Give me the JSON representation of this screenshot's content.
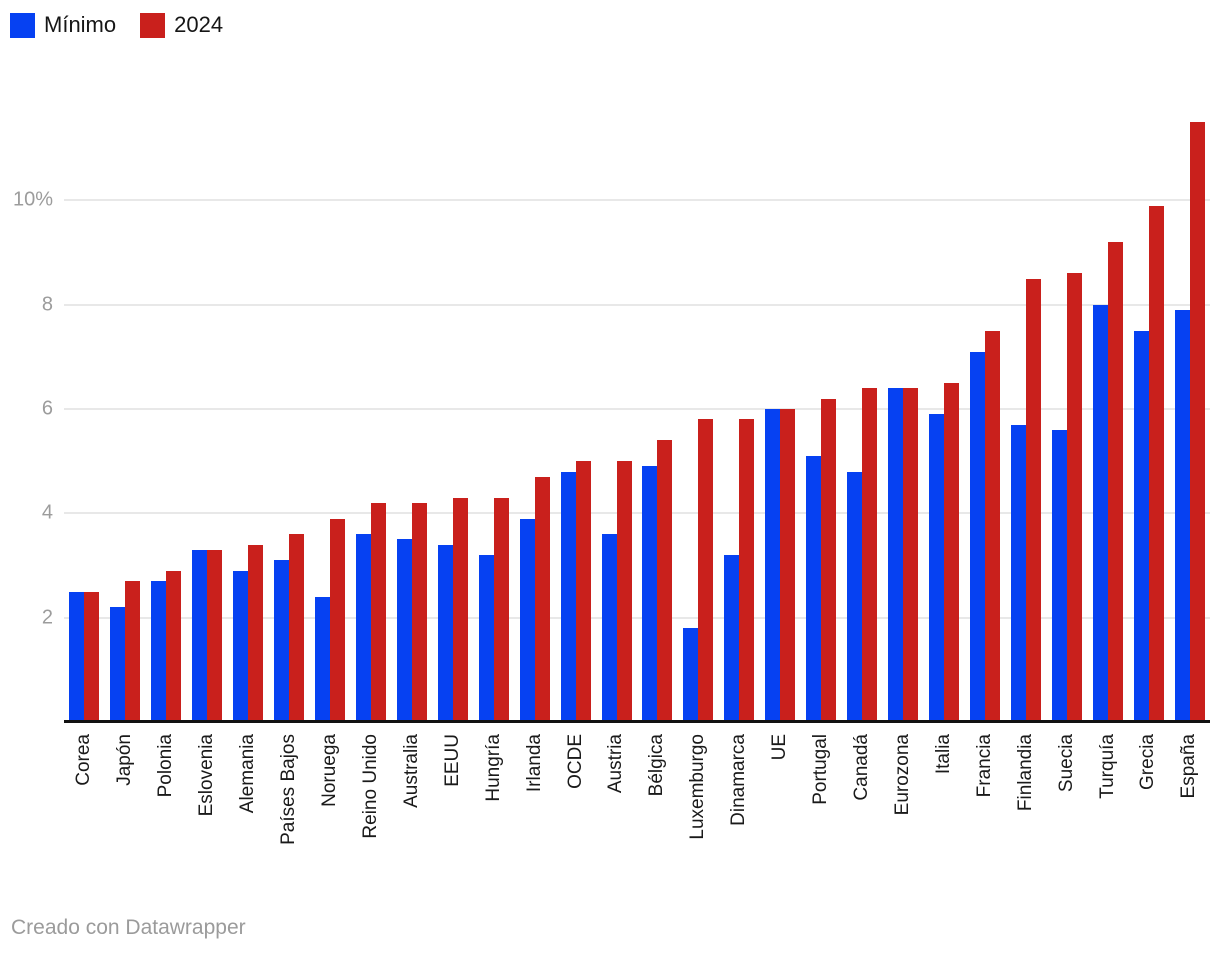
{
  "legend": {
    "items": [
      {
        "label": "Mínimo",
        "color": "#0641f2"
      },
      {
        "label": "2024",
        "color": "#c9201c"
      }
    ]
  },
  "footer": {
    "credit": "Creado con Datawrapper"
  },
  "colors": {
    "bar_minimo": "#0641f2",
    "bar_2024": "#c9201c",
    "gridline": "#e8e8e8",
    "axis_line": "#111111",
    "ytick_text": "#9c9c9c",
    "xlabel_text": "#1a1a1a",
    "footer_text": "#9b9b9b"
  },
  "chart_data": {
    "type": "bar",
    "title": "",
    "xlabel": "",
    "ylabel": "",
    "grid": true,
    "legend_position": "top-left",
    "ylim": [
      0,
      12
    ],
    "yticks": [
      {
        "value": 2,
        "label": "2"
      },
      {
        "value": 4,
        "label": "4"
      },
      {
        "value": 6,
        "label": "6"
      },
      {
        "value": 8,
        "label": "8"
      },
      {
        "value": 10,
        "label": "10%"
      }
    ],
    "categories": [
      "Corea",
      "Japón",
      "Polonia",
      "Eslovenia",
      "Alemania",
      "Países Bajos",
      "Noruega",
      "Reino Unido",
      "Australia",
      "EEUU",
      "Hungría",
      "Irlanda",
      "OCDE",
      "Austria",
      "Bélgica",
      "Luxemburgo",
      "Dinamarca",
      "UE",
      "Portugal",
      "Canadá",
      "Eurozona",
      "Italia",
      "Francia",
      "Finlandia",
      "Suecia",
      "Turquía",
      "Grecia",
      "España"
    ],
    "series": [
      {
        "name": "Mínimo",
        "color": "#0641f2",
        "values": [
          2.5,
          2.2,
          2.7,
          3.3,
          2.9,
          3.1,
          2.4,
          3.6,
          3.5,
          3.4,
          3.2,
          3.9,
          4.8,
          3.6,
          4.9,
          1.8,
          3.2,
          6.0,
          5.1,
          4.8,
          6.4,
          5.9,
          7.1,
          5.7,
          5.6,
          8.0,
          7.5,
          7.9
        ]
      },
      {
        "name": "2024",
        "color": "#c9201c",
        "values": [
          2.5,
          2.7,
          2.9,
          3.3,
          3.4,
          3.6,
          3.9,
          4.2,
          4.2,
          4.3,
          4.3,
          4.7,
          5.0,
          5.0,
          5.4,
          5.8,
          5.8,
          6.0,
          6.2,
          6.4,
          6.4,
          6.5,
          7.5,
          8.5,
          8.6,
          9.2,
          9.9,
          11.5
        ]
      }
    ]
  }
}
